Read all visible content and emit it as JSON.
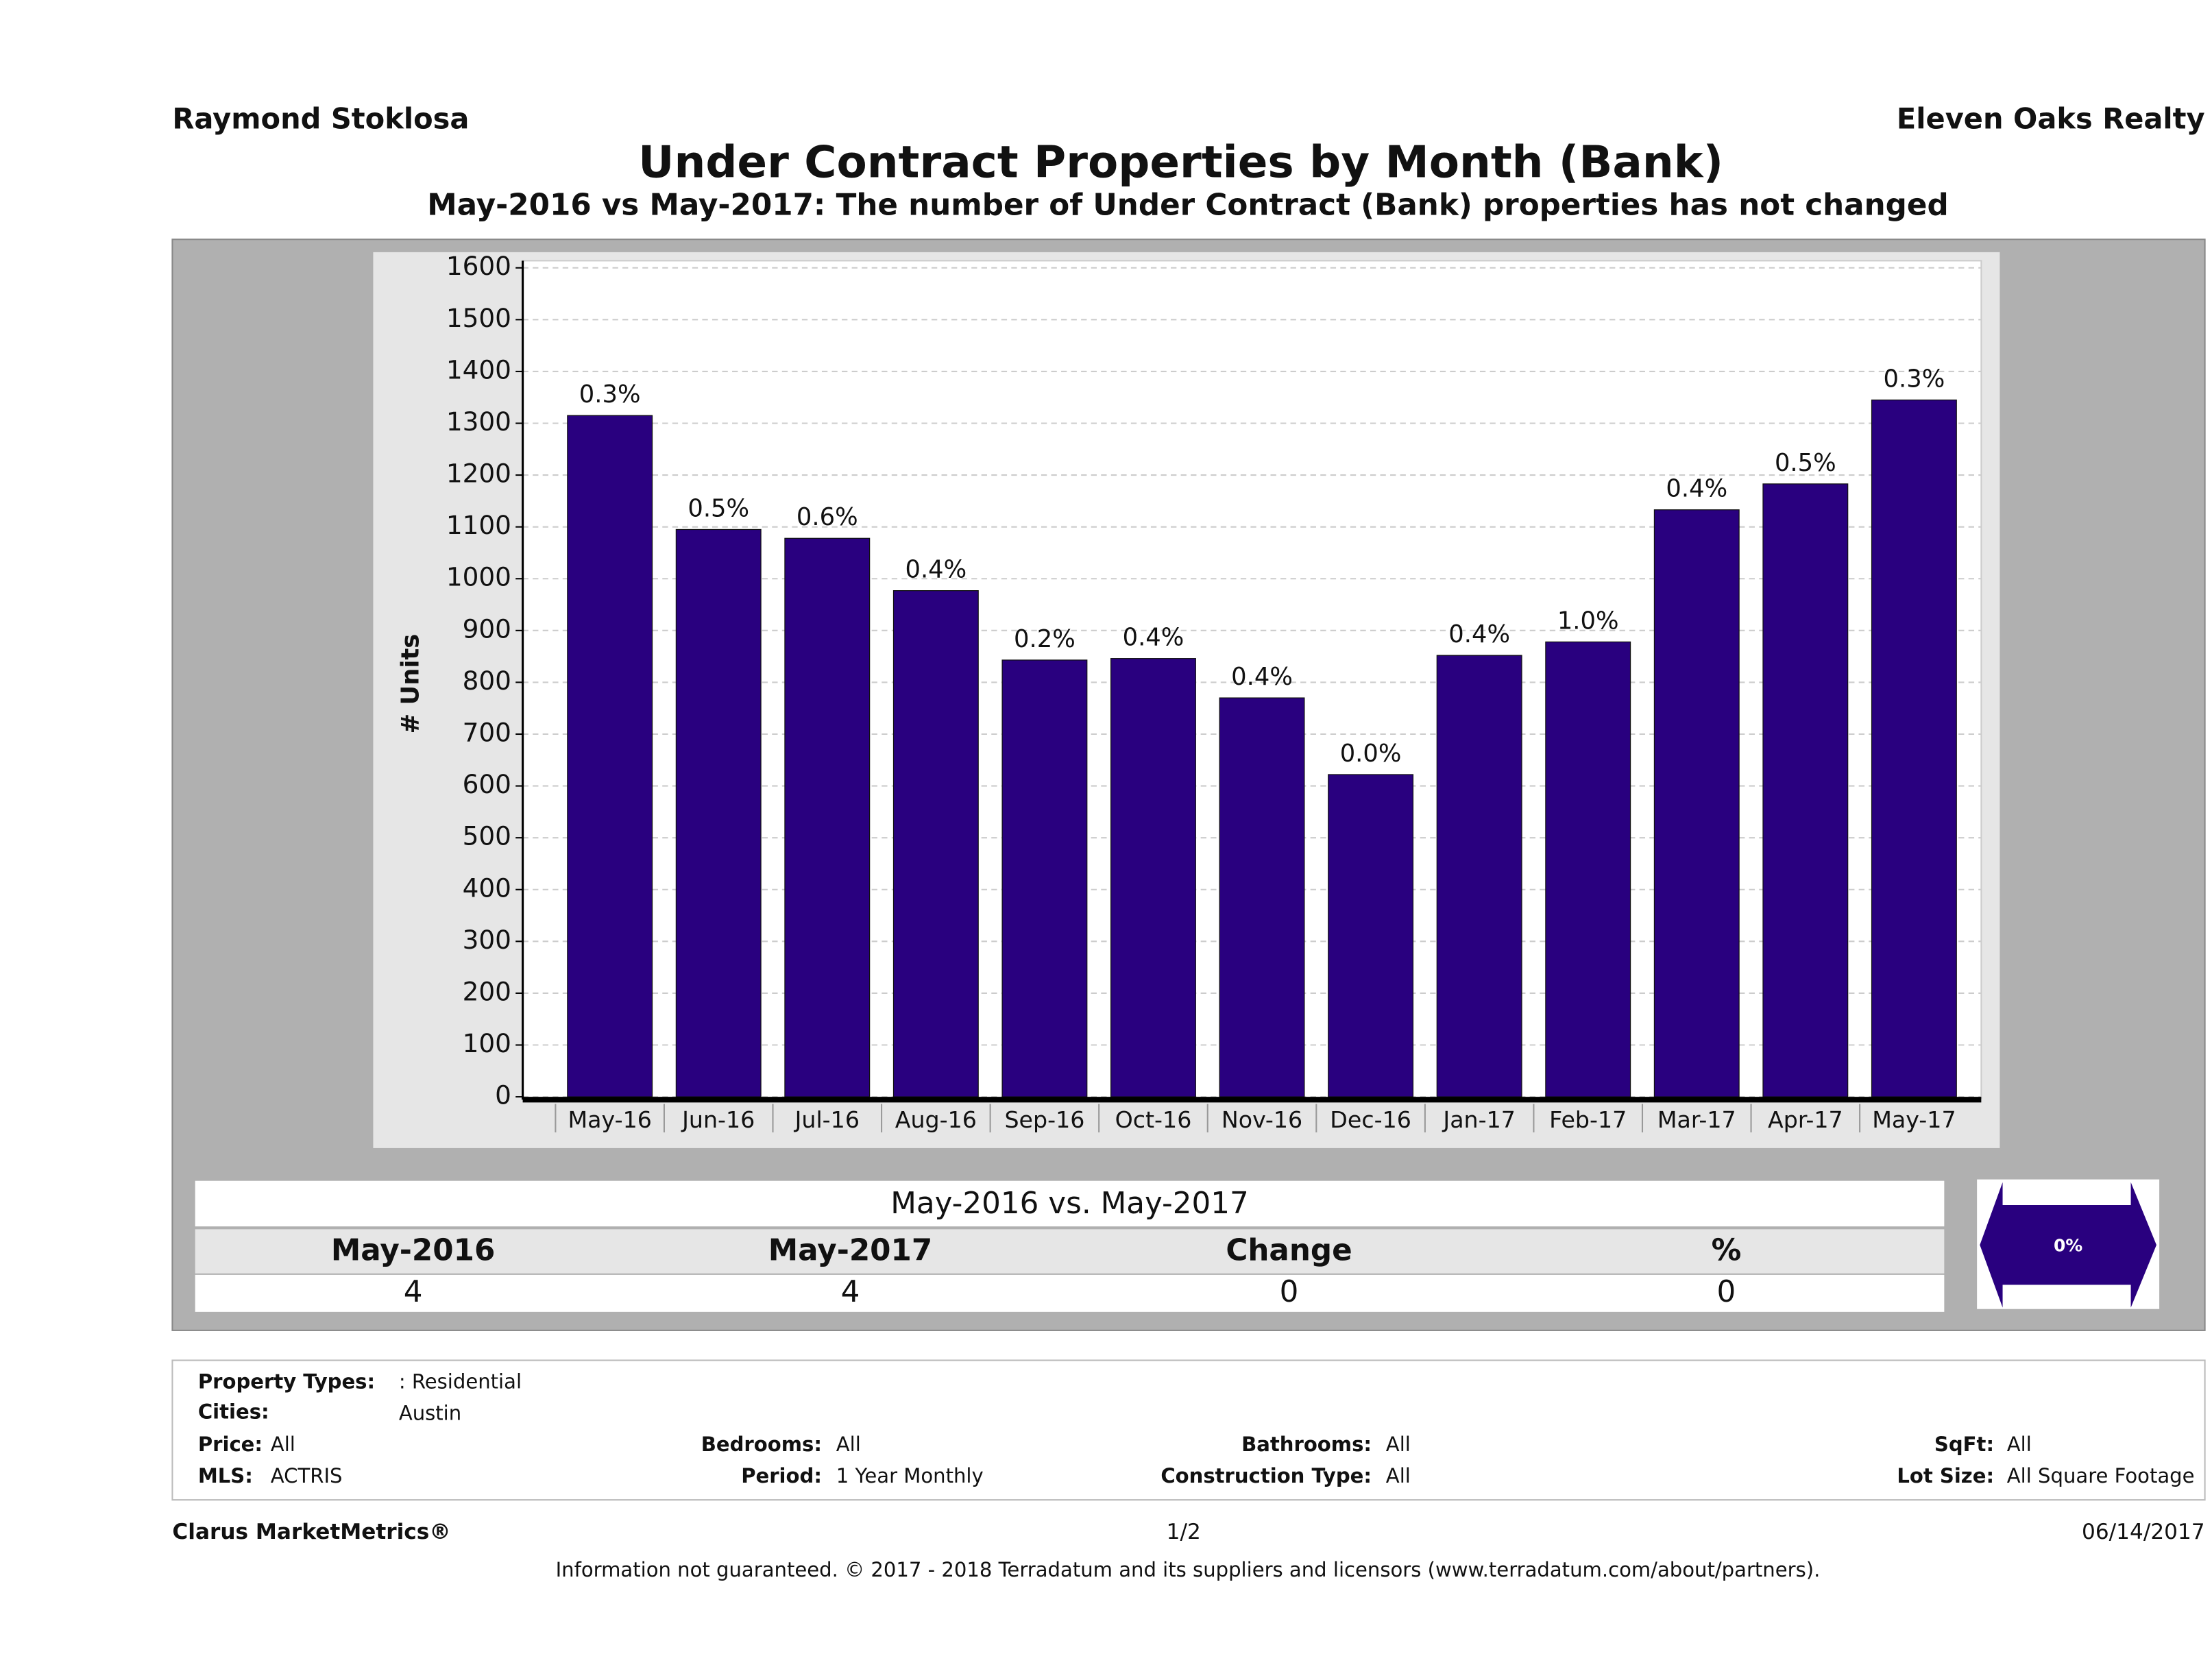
{
  "header": {
    "agent": "Raymond Stoklosa",
    "company": "Eleven Oaks Realty"
  },
  "chart_data": {
    "type": "bar",
    "title": "Under Contract Properties by Month (Bank)",
    "subtitle": "May-2016 vs May-2017: The number of Under Contract (Bank)  properties has not changed",
    "y_label": "# Units",
    "categories": [
      "May-16",
      "Jun-16",
      "Jul-16",
      "Aug-16",
      "Sep-16",
      "Oct-16",
      "Nov-16",
      "Dec-16",
      "Jan-17",
      "Feb-17",
      "Mar-17",
      "Apr-17",
      "May-17"
    ],
    "values": [
      1315,
      1095,
      1078,
      977,
      843,
      846,
      770,
      622,
      852,
      878,
      1133,
      1183,
      1345
    ],
    "bar_labels": [
      "0.3%",
      "0.5%",
      "0.6%",
      "0.4%",
      "0.2%",
      "0.4%",
      "0.4%",
      "0.0%",
      "0.4%",
      "1.0%",
      "0.4%",
      "0.5%",
      "0.3%"
    ],
    "color": "#29007f",
    "ylim": [
      0,
      1600
    ],
    "yticks": [
      0,
      100,
      200,
      300,
      400,
      500,
      600,
      700,
      800,
      900,
      1000,
      1100,
      1200,
      1300,
      1400,
      1500,
      1600
    ],
    "grid": true
  },
  "comparison": {
    "title": "May-2016 vs. May-2017",
    "columns": [
      "May-2016",
      "May-2017",
      "Change",
      "%"
    ],
    "values": [
      4,
      4,
      0,
      0
    ],
    "badge": "0%"
  },
  "filters": {
    "property_types": {
      "label": "Property Types:",
      "value": ": Residential"
    },
    "cities": {
      "label": "Cities:",
      "value": "Austin"
    },
    "price": {
      "label": "Price:",
      "value": "All"
    },
    "mls": {
      "label": "MLS:",
      "value": "ACTRIS"
    },
    "bedrooms": {
      "label": "Bedrooms:",
      "value": "All"
    },
    "period": {
      "label": "Period:",
      "value": "1 Year Monthly"
    },
    "bathrooms": {
      "label": "Bathrooms:",
      "value": "All"
    },
    "construction": {
      "label": "Construction Type:",
      "value": "All"
    },
    "sqft": {
      "label": "SqFt:",
      "value": "All"
    },
    "lot_size": {
      "label": "Lot Size:",
      "value": "All Square Footage"
    }
  },
  "footer": {
    "brand": "Clarus MarketMetrics®",
    "page": "1/2",
    "date": "06/14/2017",
    "disclaimer": "Information not guaranteed. © 2017 - 2018 Terradatum and its suppliers and licensors (www.terradatum.com/about/partners)."
  }
}
